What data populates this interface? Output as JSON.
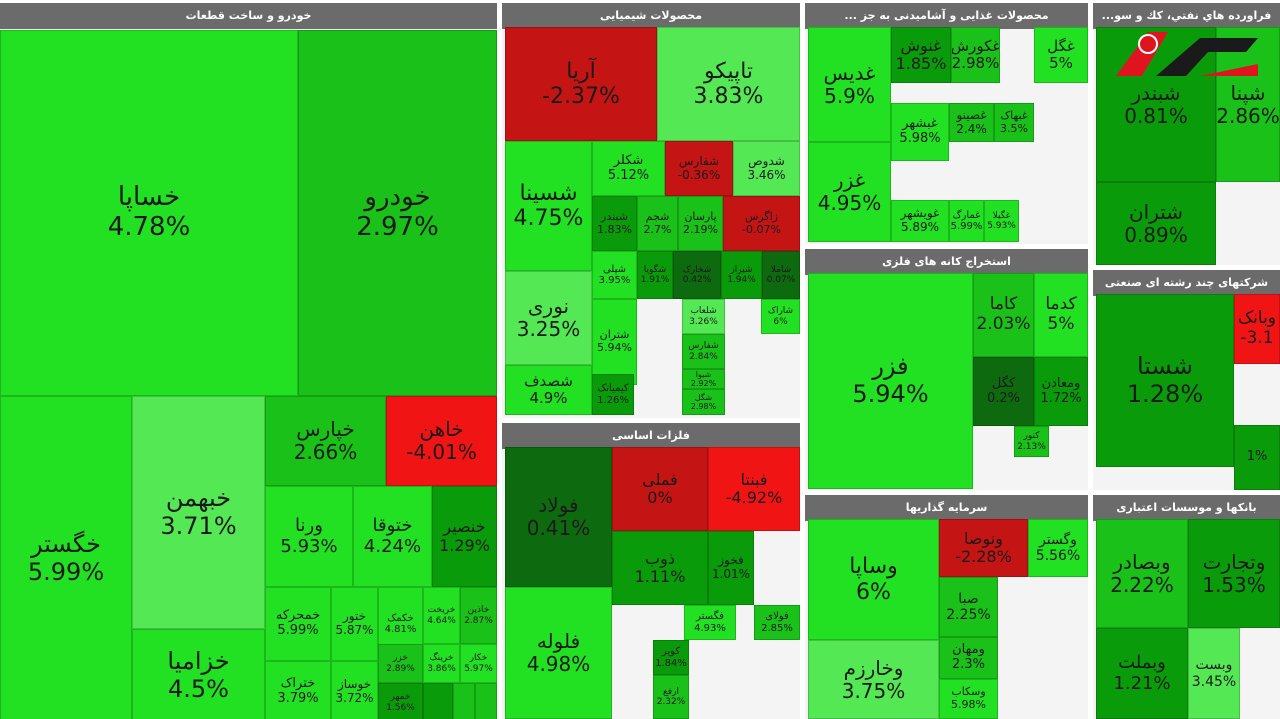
{
  "colors": {
    "strong_up": "#22e022",
    "light_up": "#55e855",
    "mid_up": "#19c119",
    "dark_up": "#0a9b0a",
    "deep_up": "#087a08",
    "neutral": "#0e6a0e",
    "down": "#c41414",
    "strong_down": "#f01414",
    "deep_down": "#7a0f0f"
  },
  "watermark": {
    "text": "رکنا"
  },
  "chart_data": [
    {
      "type": "heatmap",
      "title": "خودرو و ساخت قطعات",
      "tiles": [
        {
          "name": "خساپا",
          "change": "4.78%",
          "color": "strong_up"
        },
        {
          "name": "خودرو",
          "change": "2.97%",
          "color": "mid_up"
        },
        {
          "name": "خگستر",
          "change": "5.99%",
          "color": "strong_up"
        },
        {
          "name": "خبهمن",
          "change": "3.71%",
          "color": "light_up"
        },
        {
          "name": "خزامیا",
          "change": "4.5%",
          "color": "strong_up"
        },
        {
          "name": "خپارس",
          "change": "2.66%",
          "color": "mid_up"
        },
        {
          "name": "خاهن",
          "change": "-4.01%",
          "color": "strong_down"
        },
        {
          "name": "ورنا",
          "change": "5.93%",
          "color": "strong_up"
        },
        {
          "name": "ختوقا",
          "change": "4.24%",
          "color": "strong_up"
        },
        {
          "name": "خنصیر",
          "change": "1.29%",
          "color": "dark_up"
        },
        {
          "name": "خمحرکه",
          "change": "5.99%",
          "color": "strong_up"
        },
        {
          "name": "ختور",
          "change": "5.87%",
          "color": "strong_up"
        },
        {
          "name": "خکمک",
          "change": "4.81%",
          "color": "strong_up"
        },
        {
          "name": "خریخت",
          "change": "4.64%",
          "color": "strong_up"
        },
        {
          "name": "خاذین",
          "change": "2.87%",
          "color": "mid_up"
        },
        {
          "name": "ختراک",
          "change": "3.79%",
          "color": "strong_up"
        },
        {
          "name": "خوساز",
          "change": "3.72%",
          "color": "strong_up"
        },
        {
          "name": "خزر",
          "change": "2.89%",
          "color": "mid_up"
        },
        {
          "name": "خرینگ",
          "change": "3.86%",
          "color": "strong_up"
        },
        {
          "name": "خکار",
          "change": "5.97%",
          "color": "strong_up"
        },
        {
          "name": "خمهر",
          "change": "1.56%",
          "color": "dark_up"
        },
        {
          "name": "",
          "change": "",
          "color": "dark_up"
        },
        {
          "name": "",
          "change": "",
          "color": "mid_up"
        },
        {
          "name": "",
          "change": "",
          "color": "mid_up"
        }
      ]
    },
    {
      "type": "heatmap",
      "title": "محصولات شیمیایی",
      "tiles": [
        {
          "name": "آریا",
          "change": "-2.37%",
          "color": "down"
        },
        {
          "name": "تاپیکو",
          "change": "3.83%",
          "color": "light_up"
        },
        {
          "name": "شسینا",
          "change": "4.75%",
          "color": "strong_up"
        },
        {
          "name": "شکلر",
          "change": "5.12%",
          "color": "strong_up"
        },
        {
          "name": "شفارس",
          "change": "-0.36%",
          "color": "down"
        },
        {
          "name": "شدوص",
          "change": "3.46%",
          "color": "light_up"
        },
        {
          "name": "شبندر",
          "change": "1.83%",
          "color": "dark_up"
        },
        {
          "name": "شجم",
          "change": "2.7%",
          "color": "mid_up"
        },
        {
          "name": "پارسان",
          "change": "2.19%",
          "color": "mid_up"
        },
        {
          "name": "زاگرس",
          "change": "-0.07%",
          "color": "down"
        },
        {
          "name": "شپلی",
          "change": "3.95%",
          "color": "strong_up"
        },
        {
          "name": "شگویا",
          "change": "1.91%",
          "color": "dark_up"
        },
        {
          "name": "شخارک",
          "change": "0.42%",
          "color": "neutral"
        },
        {
          "name": "شیراز",
          "change": "1.94%",
          "color": "dark_up"
        },
        {
          "name": "شاملا",
          "change": "0.07%",
          "color": "neutral"
        },
        {
          "name": "نوری",
          "change": "3.25%",
          "color": "light_up"
        },
        {
          "name": "شتران",
          "change": "5.94%",
          "color": "strong_up"
        },
        {
          "name": "شلعاب",
          "change": "3.26%",
          "color": "light_up"
        },
        {
          "name": "شاراک",
          "change": "6%",
          "color": "strong_up"
        },
        {
          "name": "شصدف",
          "change": "4.9%",
          "color": "strong_up"
        },
        {
          "name": "کیمیاتک",
          "change": "1.26%",
          "color": "dark_up"
        },
        {
          "name": "شفارس",
          "change": "2.84%",
          "color": "mid_up"
        },
        {
          "name": "شیوا",
          "change": "2.92%",
          "color": "mid_up"
        },
        {
          "name": "شگل",
          "change": "2.98%",
          "color": "mid_up"
        }
      ]
    },
    {
      "type": "heatmap",
      "title": "محصولات غذایی و آشامیدنی به جز ...",
      "tiles": [
        {
          "name": "غدیس",
          "change": "5.9%",
          "color": "strong_up"
        },
        {
          "name": "غنوش",
          "change": "1.85%",
          "color": "dark_up"
        },
        {
          "name": "غکورش",
          "change": "2.98%",
          "color": "mid_up"
        },
        {
          "name": "غگل",
          "change": "5%",
          "color": "strong_up"
        },
        {
          "name": "غبشهر",
          "change": "5.98%",
          "color": "strong_up"
        },
        {
          "name": "غصینو",
          "change": "2.4%",
          "color": "mid_up"
        },
        {
          "name": "غبهاک",
          "change": "3.5%",
          "color": "mid_up"
        },
        {
          "name": "غزر",
          "change": "4.95%",
          "color": "strong_up"
        },
        {
          "name": "غویشهر",
          "change": "5.89%",
          "color": "strong_up"
        },
        {
          "name": "غمارگ",
          "change": "5.99%",
          "color": "strong_up"
        },
        {
          "name": "غگیلا",
          "change": "5.93%",
          "color": "strong_up"
        }
      ]
    },
    {
      "type": "heatmap",
      "title": "فراورده هاي نفتي، كك و سو...",
      "tiles": [
        {
          "name": "شبندر",
          "change": "0.81%",
          "color": "dark_up"
        },
        {
          "name": "شپنا",
          "change": "2.86%",
          "color": "mid_up"
        },
        {
          "name": "شتران",
          "change": "0.89%",
          "color": "dark_up"
        }
      ]
    },
    {
      "type": "heatmap",
      "title": "استخراج کانه های فلزی",
      "tiles": [
        {
          "name": "فزر",
          "change": "5.94%",
          "color": "strong_up"
        },
        {
          "name": "کاما",
          "change": "2.03%",
          "color": "mid_up"
        },
        {
          "name": "کدما",
          "change": "5%",
          "color": "strong_up"
        },
        {
          "name": "کگل",
          "change": "0.2%",
          "color": "neutral"
        },
        {
          "name": "ومعادن",
          "change": "1.72%",
          "color": "dark_up"
        },
        {
          "name": "کنور",
          "change": "2.13%",
          "color": "mid_up"
        }
      ]
    },
    {
      "type": "heatmap",
      "title": "شرکتهای چند رشته ای صنعتی",
      "tiles": [
        {
          "name": "شستا",
          "change": "1.28%",
          "color": "dark_up"
        },
        {
          "name": "وبانک",
          "change": "-3.1",
          "color": "strong_down"
        },
        {
          "name": "",
          "change": "1%",
          "color": "dark_up"
        }
      ]
    },
    {
      "type": "heatmap",
      "title": "فلزات اساسی",
      "tiles": [
        {
          "name": "فولاد",
          "change": "0.41%",
          "color": "neutral"
        },
        {
          "name": "فملی",
          "change": "0%",
          "color": "down"
        },
        {
          "name": "فبنتا",
          "change": "-4.92%",
          "color": "strong_down"
        },
        {
          "name": "ذوب",
          "change": "1.11%",
          "color": "dark_up"
        },
        {
          "name": "فخوز",
          "change": "1.01%",
          "color": "dark_up"
        },
        {
          "name": "فلوله",
          "change": "4.98%",
          "color": "strong_up"
        },
        {
          "name": "فگستر",
          "change": "4.93%",
          "color": "strong_up"
        },
        {
          "name": "کویر",
          "change": "1.84%",
          "color": "dark_up"
        },
        {
          "name": "فولای",
          "change": "2.85%",
          "color": "mid_up"
        },
        {
          "name": "ارفع",
          "change": "2.32%",
          "color": "mid_up"
        }
      ]
    },
    {
      "type": "heatmap",
      "title": "سرمایه گذاریها",
      "tiles": [
        {
          "name": "وساپا",
          "change": "6%",
          "color": "strong_up"
        },
        {
          "name": "ونوصا",
          "change": "-2.28%",
          "color": "down"
        },
        {
          "name": "وگستر",
          "change": "5.56%",
          "color": "strong_up"
        },
        {
          "name": "صبا",
          "change": "2.25%",
          "color": "mid_up"
        },
        {
          "name": "وخارزم",
          "change": "3.75%",
          "color": "light_up"
        },
        {
          "name": "ومهان",
          "change": "2.3%",
          "color": "mid_up"
        },
        {
          "name": "وسکاب",
          "change": "5.98%",
          "color": "strong_up"
        }
      ]
    },
    {
      "type": "heatmap",
      "title": "بانکها و موسسات اعتباری",
      "tiles": [
        {
          "name": "وبصادر",
          "change": "2.22%",
          "color": "mid_up"
        },
        {
          "name": "وتجارت",
          "change": "1.53%",
          "color": "dark_up"
        },
        {
          "name": "وبملت",
          "change": "1.21%",
          "color": "dark_up"
        },
        {
          "name": "وبست",
          "change": "3.45%",
          "color": "light_up"
        }
      ]
    }
  ]
}
